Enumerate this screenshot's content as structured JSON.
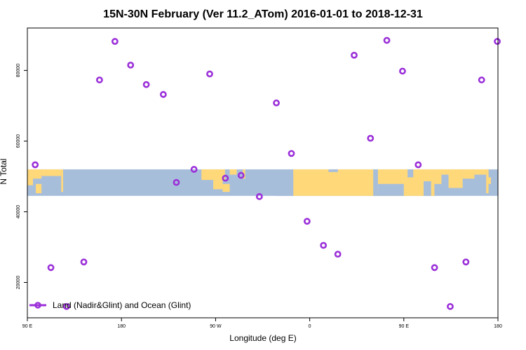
{
  "chart_data": {
    "type": "scatter",
    "title": "15N-30N February (Ver 11.2_ATom)   2016-01-01 to 2018-12-31",
    "xlabel": "Longitude (deg E)",
    "ylabel": "N Total",
    "xlim": [
      -180,
      180
    ],
    "ylim": [
      10000,
      92000
    ],
    "x_ticks": [
      {
        "value": -180,
        "label": "90 E"
      },
      {
        "value": -108,
        "label": "180"
      },
      {
        "value": -36,
        "label": "90 W"
      },
      {
        "value": 36,
        "label": "0"
      },
      {
        "value": 108,
        "label": "90 E"
      },
      {
        "value": 180,
        "label": "180"
      }
    ],
    "y_ticks": [
      {
        "value": 20000,
        "label": "20000"
      },
      {
        "value": 40000,
        "label": "40000"
      },
      {
        "value": 60000,
        "label": "60000"
      },
      {
        "value": 80000,
        "label": "80000"
      }
    ],
    "series": [
      {
        "name": "Land (Nadir&Glint) and Ocean (Glint)",
        "color": "#9b30d9",
        "points": [
          {
            "x": -174.0,
            "y": 53300
          },
          {
            "x": -162.0,
            "y": 24200
          },
          {
            "x": -150.0,
            "y": 13200
          },
          {
            "x": -136.8,
            "y": 25800
          },
          {
            "x": -124.8,
            "y": 77300
          },
          {
            "x": -113.0,
            "y": 88200
          },
          {
            "x": -101.0,
            "y": 81500
          },
          {
            "x": -89.0,
            "y": 76000
          },
          {
            "x": -76.0,
            "y": 73200
          },
          {
            "x": -66.0,
            "y": 48300
          },
          {
            "x": -52.5,
            "y": 52000
          },
          {
            "x": -40.5,
            "y": 79000
          },
          {
            "x": -28.5,
            "y": 49500
          },
          {
            "x": -16.5,
            "y": 50300
          },
          {
            "x": -2.5,
            "y": 44300
          },
          {
            "x": 10.5,
            "y": 70800
          },
          {
            "x": 22.0,
            "y": 56500
          },
          {
            "x": 34.0,
            "y": 37300
          },
          {
            "x": 46.5,
            "y": 30500
          },
          {
            "x": 57.5,
            "y": 28000
          },
          {
            "x": 70.0,
            "y": 84300
          },
          {
            "x": 82.5,
            "y": 60800
          },
          {
            "x": 95.0,
            "y": 88500
          },
          {
            "x": 107.0,
            "y": 79800
          },
          {
            "x": 119.0,
            "y": 53300
          },
          {
            "x": 131.5,
            "y": 24200
          },
          {
            "x": 143.5,
            "y": 13200
          },
          {
            "x": 155.5,
            "y": 25800
          },
          {
            "x": 167.5,
            "y": 77300
          },
          {
            "x": 179.5,
            "y": 88200
          }
        ]
      }
    ],
    "map_band": {
      "y_range": [
        44500,
        52000
      ],
      "ocean_color": "#a7bedb",
      "land_color": "#ffd879"
    },
    "legend_position": "bottom-left"
  }
}
